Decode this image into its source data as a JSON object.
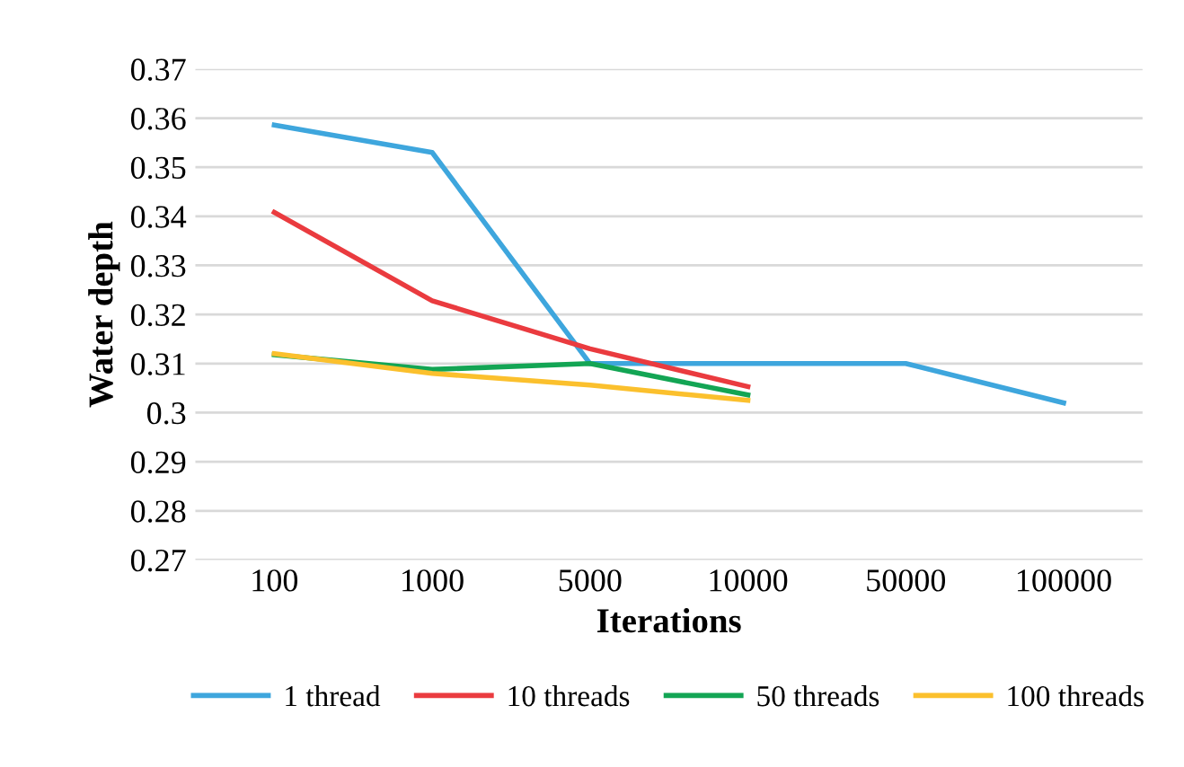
{
  "chart_data": {
    "type": "line",
    "xlabel": "Iterations",
    "ylabel": "Water depth",
    "categories": [
      "100",
      "1000",
      "5000",
      "10000",
      "50000",
      "100000"
    ],
    "series": [
      {
        "name": "1 thread",
        "color": "#3ea6dd",
        "values": [
          0.3586,
          0.353,
          0.31,
          0.31,
          0.31,
          0.302
        ]
      },
      {
        "name": "10 threads",
        "color": "#ea3b3f",
        "values": [
          0.3408,
          0.3228,
          0.313,
          0.3053,
          null,
          null
        ]
      },
      {
        "name": "50 threads",
        "color": "#13a554",
        "values": [
          0.3118,
          0.3088,
          0.31,
          0.3036,
          null,
          null
        ]
      },
      {
        "name": "100 threads",
        "color": "#fbc02d",
        "values": [
          0.312,
          0.308,
          0.3056,
          0.3025,
          null,
          null
        ]
      }
    ],
    "ylim": [
      0.27,
      0.37
    ],
    "yticks": [
      {
        "value": 0.27,
        "label": "0.27"
      },
      {
        "value": 0.28,
        "label": "0.28"
      },
      {
        "value": 0.29,
        "label": "0.29"
      },
      {
        "value": 0.3,
        "label": "0.3"
      },
      {
        "value": 0.31,
        "label": "0.31"
      },
      {
        "value": 0.32,
        "label": "0.32"
      },
      {
        "value": 0.33,
        "label": "0.33"
      },
      {
        "value": 0.34,
        "label": "0.34"
      },
      {
        "value": 0.35,
        "label": "0.35"
      },
      {
        "value": 0.36,
        "label": "0.36"
      },
      {
        "value": 0.37,
        "label": "0.37"
      }
    ],
    "grid": "y",
    "legend": "bottom",
    "marker": "none",
    "line_style": "solid"
  }
}
